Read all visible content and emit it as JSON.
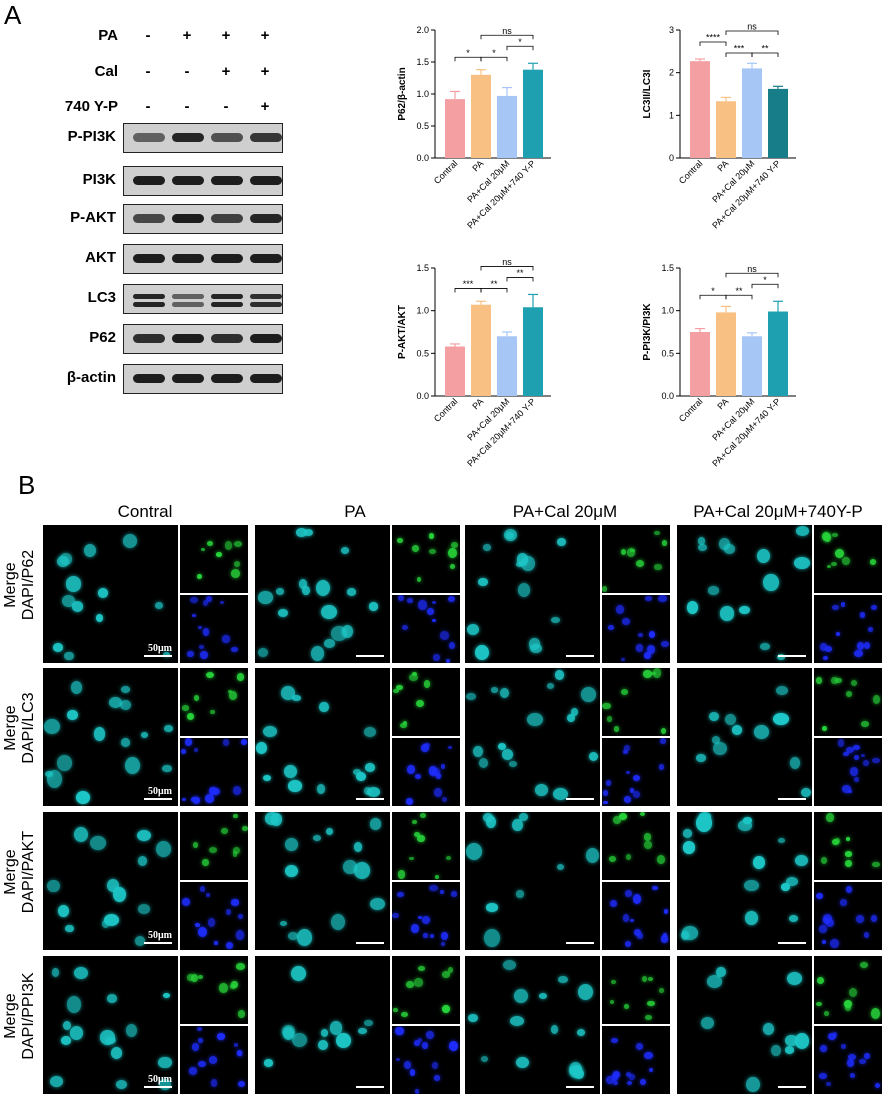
{
  "panel_a": {
    "letter": "A",
    "conditions": [
      {
        "name": "PA",
        "signs": [
          "-",
          "+",
          "+",
          "+"
        ]
      },
      {
        "name": "Cal",
        "signs": [
          "-",
          "-",
          "+",
          "+"
        ]
      },
      {
        "name": "740 Y-P",
        "signs": [
          "-",
          "-",
          "-",
          "+"
        ]
      }
    ],
    "blots": [
      {
        "label": "P-PI3K",
        "intensity": [
          0.55,
          0.9,
          0.65,
          0.8
        ]
      },
      {
        "label": "PI3K",
        "intensity": [
          0.95,
          0.95,
          0.95,
          0.95
        ]
      },
      {
        "label": "P-AKT",
        "intensity": [
          0.7,
          0.95,
          0.75,
          0.9
        ]
      },
      {
        "label": "AKT",
        "intensity": [
          0.95,
          0.95,
          0.95,
          0.95
        ]
      },
      {
        "label": "LC3",
        "intensity": [
          0.9,
          0.55,
          0.9,
          0.85
        ]
      },
      {
        "label": "P62",
        "intensity": [
          0.85,
          0.95,
          0.85,
          0.95
        ]
      },
      {
        "label": "β-actin",
        "intensity": [
          0.95,
          0.95,
          0.95,
          0.95
        ]
      }
    ]
  },
  "chart_data": [
    {
      "type": "bar",
      "ylabel": "P62/β-actin",
      "categories": [
        "Contral",
        "PA",
        "PA+Cal 20μM",
        "PA+Cal 20μM+740 Y-P"
      ],
      "values": [
        0.92,
        1.3,
        0.97,
        1.38
      ],
      "errors": [
        0.12,
        0.08,
        0.13,
        0.1
      ],
      "ylim": [
        0,
        2.0
      ],
      "yticks": [
        "0.0",
        "0.5",
        "1.0",
        "1.5",
        "2.0"
      ],
      "colors": [
        "#f4a0a3",
        "#f8c083",
        "#a6c6f5",
        "#1fa0b0"
      ],
      "significance": [
        {
          "from": 0,
          "to": 1,
          "label": "*",
          "level": 1
        },
        {
          "from": 1,
          "to": 2,
          "label": "*",
          "level": 1
        },
        {
          "from": 2,
          "to": 3,
          "label": "*",
          "level": 2
        },
        {
          "from": 1,
          "to": 3,
          "label": "ns",
          "level": 3
        }
      ]
    },
    {
      "type": "bar",
      "ylabel": "LC3II/LC3I",
      "categories": [
        "Contral",
        "PA",
        "PA+Cal 20μM",
        "PA+Cal 20μM+740 Y-P"
      ],
      "values": [
        2.27,
        1.33,
        2.1,
        1.62
      ],
      "errors": [
        0.05,
        0.09,
        0.12,
        0.06
      ],
      "ylim": [
        0,
        3
      ],
      "yticks": [
        "0",
        "1",
        "2",
        "3"
      ],
      "colors": [
        "#f4a0a3",
        "#f8c083",
        "#a6c6f5",
        "#167d89"
      ],
      "significance": [
        {
          "from": 0,
          "to": 1,
          "label": "****",
          "level": 2
        },
        {
          "from": 1,
          "to": 2,
          "label": "***",
          "level": 1
        },
        {
          "from": 2,
          "to": 3,
          "label": "**",
          "level": 1
        },
        {
          "from": 1,
          "to": 3,
          "label": "ns",
          "level": 3
        }
      ]
    },
    {
      "type": "bar",
      "ylabel": "P-AKT/AKT",
      "categories": [
        "Contral",
        "PA",
        "PA+Cal 20μM",
        "PA+Cal 20μM+740 Y-P"
      ],
      "values": [
        0.58,
        1.07,
        0.7,
        1.04
      ],
      "errors": [
        0.03,
        0.04,
        0.05,
        0.15
      ],
      "ylim": [
        0,
        1.5
      ],
      "yticks": [
        "0.0",
        "0.5",
        "1.0",
        "1.5"
      ],
      "colors": [
        "#f4a0a3",
        "#f8c083",
        "#a6c6f5",
        "#1fa0b0"
      ],
      "significance": [
        {
          "from": 0,
          "to": 1,
          "label": "***",
          "level": 1
        },
        {
          "from": 1,
          "to": 2,
          "label": "**",
          "level": 1
        },
        {
          "from": 2,
          "to": 3,
          "label": "**",
          "level": 2
        },
        {
          "from": 1,
          "to": 3,
          "label": "ns",
          "level": 3
        }
      ]
    },
    {
      "type": "bar",
      "ylabel": "P-PI3K/PI3K",
      "categories": [
        "Contral",
        "PA",
        "PA+Cal 20μM",
        "PA+Cal 20μM+740 Y-P"
      ],
      "values": [
        0.75,
        0.98,
        0.7,
        0.99
      ],
      "errors": [
        0.04,
        0.07,
        0.04,
        0.12
      ],
      "ylim": [
        0,
        1.5
      ],
      "yticks": [
        "0.0",
        "0.5",
        "1.0",
        "1.5"
      ],
      "colors": [
        "#f4a0a3",
        "#f8c083",
        "#a6c6f5",
        "#1fa0b0"
      ],
      "significance": [
        {
          "from": 0,
          "to": 1,
          "label": "*",
          "level": 1
        },
        {
          "from": 1,
          "to": 2,
          "label": "**",
          "level": 1
        },
        {
          "from": 2,
          "to": 3,
          "label": "*",
          "level": 2
        },
        {
          "from": 1,
          "to": 3,
          "label": "ns",
          "level": 3
        }
      ]
    }
  ],
  "panel_b": {
    "letter": "B",
    "columns": [
      "Contral",
      "PA",
      "PA+Cal 20μM",
      "PA+Cal 20μM+740Y-P"
    ],
    "rows": [
      {
        "line1": "Merge",
        "line2": "DAPI/P62"
      },
      {
        "line1": "Merge",
        "line2": "DAPI/LC3"
      },
      {
        "line1": "Merge",
        "line2": "DAPI/PAKT"
      },
      {
        "line1": "Merge",
        "line2": "DAPI/PPI3K"
      }
    ],
    "scale_bar": "50μm",
    "colors": {
      "merge": "#1ec8c8",
      "green": "#27d33a",
      "dapi": "#1e2dff"
    }
  }
}
